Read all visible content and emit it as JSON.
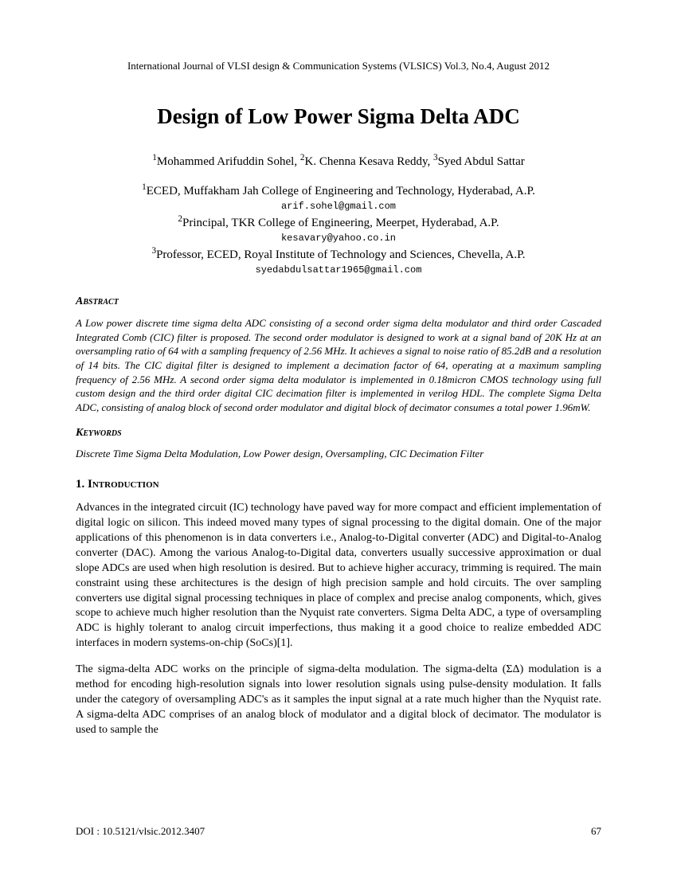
{
  "journal_header": "International Journal of VLSI design & Communication Systems (VLSICS) Vol.3, No.4, August 2012",
  "title": "Design of Low Power Sigma Delta ADC",
  "authors_html": "<sup>1</sup>Mohammed Arifuddin Sohel, <sup>2</sup>K. Chenna Kesava Reddy, <sup>3</sup>Syed Abdul Sattar",
  "affiliations": [
    {
      "line": "<sup>1</sup>ECED, Muffakham Jah College of Engineering and Technology, Hyderabad, A.P.",
      "email": "arif.sohel@gmail.com"
    },
    {
      "line": "<sup>2</sup>Principal, TKR College of Engineering, Meerpet, Hyderabad, A.P.",
      "email": "kesavary@yahoo.co.in"
    },
    {
      "line": "<sup>3</sup>Professor, ECED, Royal Institute of Technology and Sciences, Chevella, A.P.",
      "email": "syedabdulsattar1965@gmail.com"
    }
  ],
  "abstract_heading": "Abstract",
  "abstract_text": "A Low power discrete time sigma delta ADC consisting of a second order sigma delta modulator and third order Cascaded Integrated Comb (CIC) filter is proposed. The second order modulator is designed to work at a signal band of 20K Hz at an oversampling ratio of 64 with a sampling frequency of 2.56 MHz. It achieves a signal to noise ratio of 85.2dB and a resolution of 14 bits. The CIC digital filter is designed to implement a decimation factor of 64, operating at a maximum sampling frequency of 2.56 MHz. A second order sigma delta modulator is implemented in 0.18micron CMOS technology using full custom design and the third order digital CIC decimation filter is implemented in verilog HDL. The complete Sigma Delta ADC, consisting of analog block of second order modulator and digital block of decimator consumes a total power 1.96mW.",
  "keywords_heading": "Keywords",
  "keywords_text": "Discrete Time Sigma Delta Modulation, Low Power design, Oversampling, CIC Decimation Filter",
  "intro_heading_html": "1. I<span class=\"small-caps\">ntroduction</span>",
  "intro_p1": "Advances in the integrated circuit (IC) technology have paved way for more compact and efficient implementation of digital logic on silicon. This indeed moved many types of signal processing to the digital domain. One of the major applications of this phenomenon is in data converters i.e., Analog-to-Digital converter (ADC) and Digital-to-Analog converter (DAC). Among the various Analog-to-Digital data, converters usually successive approximation or dual slope ADCs are used when high resolution is desired. But to achieve higher accuracy, trimming is required. The main constraint using these architectures is the design of high precision sample and hold circuits. The over sampling converters use digital signal processing techniques in place of complex and precise analog components, which, gives scope to achieve much higher resolution than the Nyquist rate converters. Sigma Delta ADC, a type of oversampling ADC is highly tolerant to analog circuit imperfections, thus making it a good choice to realize embedded ADC interfaces in modern systems-on-chip (SoCs)[1].",
  "intro_p2": "The sigma-delta ADC works on the principle of sigma-delta modulation. The sigma-delta (ΣΔ) modulation is a method for encoding high-resolution signals into lower resolution signals using pulse-density modulation. It falls under the category of oversampling ADC's as it samples the input signal at a rate much higher than the Nyquist rate. A sigma-delta ADC comprises of an analog block of modulator and a digital block of decimator. The modulator is used to sample the",
  "doi": "DOI : 10.5121/vlsic.2012.3407",
  "page_number": "67"
}
